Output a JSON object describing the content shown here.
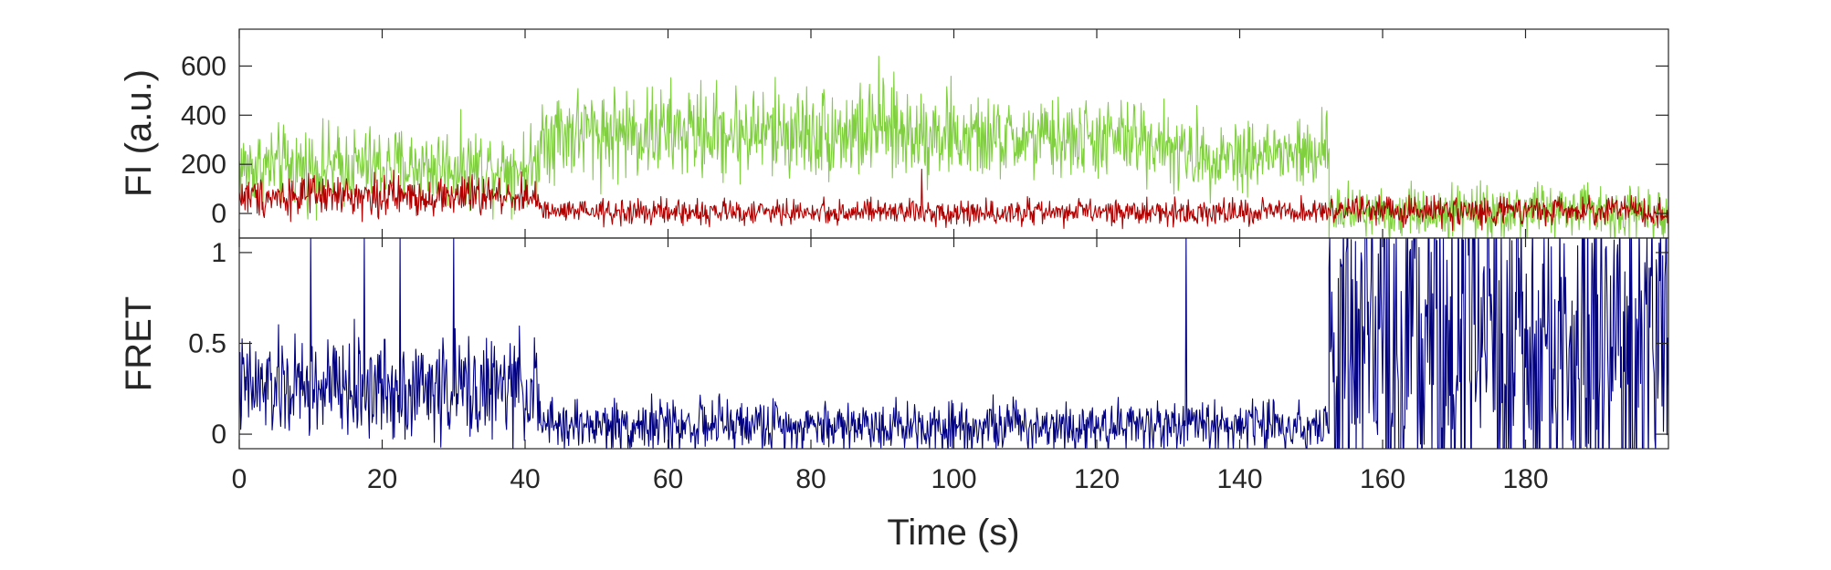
{
  "chart_data": [
    {
      "type": "line",
      "panel": "top",
      "title": "",
      "ylabel": "FI (a.u.)",
      "xlabel": "",
      "xlim": [
        0,
        200
      ],
      "ylim": [
        -100,
        750
      ],
      "yticks": [
        0,
        200,
        400,
        600
      ],
      "ytick_labels": [
        "0",
        "200",
        "400",
        "600"
      ],
      "grid": false,
      "series": [
        {
          "color": "#7fcf3f",
          "segments": [
            {
              "t": [
                0,
                42
              ],
              "mean": 190,
              "noise": 80
            },
            {
              "t": [
                42,
                60
              ],
              "mean": 330,
              "noise": 95
            },
            {
              "t": [
                60,
                100
              ],
              "mean": 330,
              "noise": 95
            },
            {
              "t": [
                100,
                130
              ],
              "mean": 300,
              "noise": 80
            },
            {
              "t": [
                130,
                152.5
              ],
              "mean": 240,
              "noise": 75
            },
            {
              "t": [
                152.5,
                200
              ],
              "mean": 10,
              "noise": 55
            }
          ],
          "peaks": [
            {
              "t": 89.5,
              "v": 640
            }
          ]
        },
        {
          "color": "#b00000",
          "segments": [
            {
              "t": [
                0,
                42
              ],
              "mean": 70,
              "noise": 40
            },
            {
              "t": [
                42,
                152.5
              ],
              "mean": 5,
              "noise": 25
            },
            {
              "t": [
                152.5,
                200
              ],
              "mean": 10,
              "noise": 30
            }
          ],
          "peaks": [
            {
              "t": 95.5,
              "v": 180
            },
            {
              "t": 39.5,
              "v": 170
            }
          ]
        }
      ]
    },
    {
      "type": "line",
      "panel": "bottom",
      "title": "",
      "ylabel": "FRET",
      "xlabel": "Time (s)",
      "xlim": [
        0,
        200
      ],
      "ylim": [
        -0.08,
        1.08
      ],
      "yticks": [
        0,
        0.5,
        1
      ],
      "ytick_labels": [
        "0",
        "0.5",
        "1"
      ],
      "xticks": [
        0,
        20,
        40,
        60,
        80,
        100,
        120,
        140,
        160,
        180
      ],
      "xtick_labels": [
        "0",
        "20",
        "40",
        "60",
        "80",
        "100",
        "120",
        "140",
        "160",
        "180"
      ],
      "grid": false,
      "series": [
        {
          "color": "#000080",
          "segments": [
            {
              "t": [
                0,
                42
              ],
              "mean": 0.25,
              "noise": 0.14
            },
            {
              "t": [
                42,
                152.5
              ],
              "mean": 0.05,
              "noise": 0.07
            },
            {
              "t": [
                152.5,
                200
              ],
              "mean": 0.45,
              "noise": 0.5
            }
          ],
          "peaks": [
            {
              "t": 10,
              "v": 1.08
            },
            {
              "t": 17.5,
              "v": 1.08
            },
            {
              "t": 22.5,
              "v": 1.08
            },
            {
              "t": 30,
              "v": 1.08
            },
            {
              "t": 132.5,
              "v": 1.08
            }
          ]
        }
      ]
    }
  ]
}
